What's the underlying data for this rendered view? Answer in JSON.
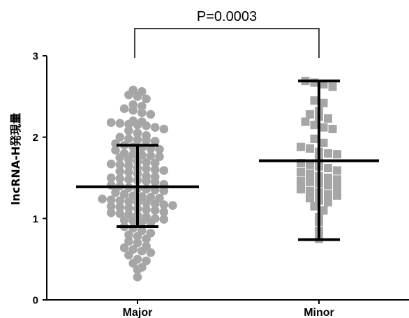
{
  "chart_data": {
    "type": "scatter",
    "title": "",
    "xlabel": "",
    "ylabel": "lncRNA-H発現量",
    "ylim": [
      0,
      3
    ],
    "yticks": [
      "0",
      "1",
      "2",
      "3"
    ],
    "categories": [
      "Major",
      "Minor"
    ],
    "annotation": "P=0.0003",
    "colors": {
      "points": "#a6a6a6",
      "stats": "#000000"
    },
    "series": [
      {
        "name": "Major",
        "marker": "circle",
        "mean": 1.39,
        "error_low": 0.9,
        "error_high": 1.9,
        "values": [
          2.58,
          2.56,
          2.52,
          2.5,
          2.47,
          2.4,
          2.38,
          2.35,
          2.33,
          2.3,
          2.28,
          2.2,
          2.19,
          2.18,
          2.17,
          2.16,
          2.15,
          2.14,
          2.12,
          2.1,
          2.08,
          2.05,
          2.02,
          2.0,
          1.98,
          1.97,
          1.96,
          1.95,
          1.92,
          1.9,
          1.88,
          1.87,
          1.86,
          1.85,
          1.84,
          1.8,
          1.79,
          1.78,
          1.77,
          1.76,
          1.75,
          1.72,
          1.7,
          1.69,
          1.68,
          1.67,
          1.66,
          1.65,
          1.62,
          1.61,
          1.6,
          1.59,
          1.58,
          1.57,
          1.55,
          1.52,
          1.51,
          1.5,
          1.49,
          1.48,
          1.47,
          1.46,
          1.45,
          1.42,
          1.41,
          1.4,
          1.38,
          1.37,
          1.36,
          1.35,
          1.34,
          1.32,
          1.3,
          1.28,
          1.27,
          1.26,
          1.25,
          1.24,
          1.23,
          1.22,
          1.21,
          1.2,
          1.19,
          1.18,
          1.17,
          1.16,
          1.15,
          1.14,
          1.13,
          1.12,
          1.11,
          1.1,
          1.08,
          1.07,
          1.06,
          1.05,
          1.04,
          1.02,
          1.0,
          0.99,
          0.98,
          0.97,
          0.96,
          0.95,
          0.9,
          0.88,
          0.85,
          0.82,
          0.8,
          0.78,
          0.75,
          0.72,
          0.7,
          0.66,
          0.64,
          0.62,
          0.6,
          0.58,
          0.55,
          0.5,
          0.48,
          0.45,
          0.4,
          0.37,
          0.28
        ]
      },
      {
        "name": "Minor",
        "marker": "square",
        "mean": 1.71,
        "error_low": 0.74,
        "error_high": 2.69,
        "values": [
          2.69,
          2.67,
          2.65,
          2.62,
          2.45,
          2.42,
          2.32,
          2.28,
          2.25,
          2.23,
          2.19,
          2.15,
          2.12,
          2.1,
          1.98,
          1.93,
          1.88,
          1.86,
          1.82,
          1.8,
          1.79,
          1.74,
          1.68,
          1.66,
          1.64,
          1.62,
          1.59,
          1.57,
          1.55,
          1.52,
          1.5,
          1.48,
          1.46,
          1.45,
          1.43,
          1.41,
          1.38,
          1.36,
          1.34,
          1.32,
          1.3,
          1.28,
          1.25,
          1.22,
          1.2,
          1.15,
          1.1,
          1.02,
          0.96,
          0.85,
          0.75
        ]
      }
    ]
  }
}
